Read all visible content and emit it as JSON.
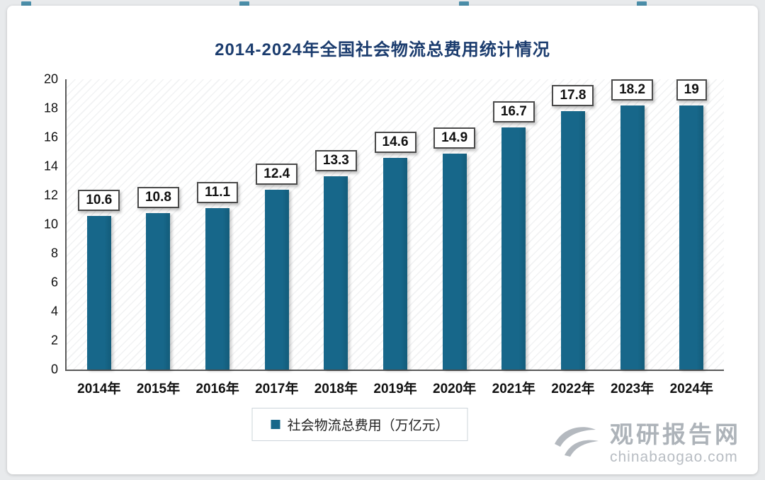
{
  "page": {
    "background": "#e8eaec",
    "card_background": "#ffffff"
  },
  "chart_data": {
    "type": "bar",
    "title": "2014-2024年全国社会物流总费用统计情况",
    "categories": [
      "2014年",
      "2015年",
      "2016年",
      "2017年",
      "2018年",
      "2019年",
      "2020年",
      "2021年",
      "2022年",
      "2023年",
      "2024年"
    ],
    "values": [
      10.6,
      10.8,
      11.1,
      12.4,
      13.3,
      14.6,
      14.9,
      16.7,
      17.8,
      18.2,
      19
    ],
    "value_labels": [
      "10.6",
      "10.8",
      "11.1",
      "12.4",
      "13.3",
      "14.6",
      "14.9",
      "16.7",
      "17.8",
      "18.2",
      "19"
    ],
    "ylim": [
      0,
      20
    ],
    "yticks": [
      0,
      2,
      4,
      6,
      8,
      10,
      12,
      14,
      16,
      18,
      20
    ],
    "xlabel": "",
    "ylabel": "",
    "grid": false,
    "bar_color": "#17678a",
    "legend_position": "bottom-center",
    "legend": [
      "社会物流总费用（万亿元）"
    ]
  },
  "legend": {
    "label": "社会物流总费用（万亿元）"
  },
  "watermark": {
    "site_name": "观研报告网",
    "domain": "chinabaogao.com"
  },
  "colors": {
    "title": "#1b3c6e",
    "bar": "#17678a",
    "axis_text": "#111111",
    "watermark": "#b2b7bd"
  }
}
